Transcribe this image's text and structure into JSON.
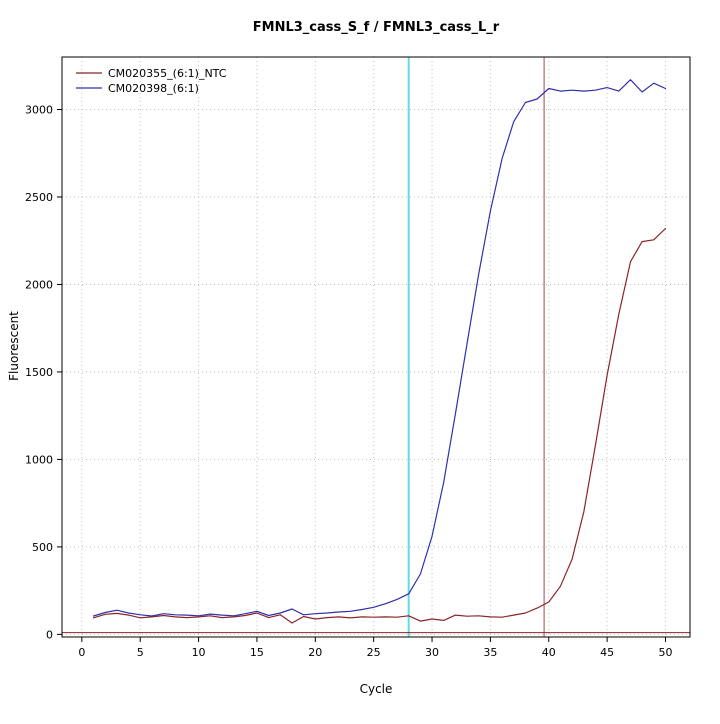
{
  "page": {
    "background": "#ffffff"
  },
  "chart_data": {
    "type": "line",
    "title": "FMNL3_cass_S_f / FMNL3_cass_L_r",
    "xlabel": "Cycle",
    "ylabel": "Fluorescent",
    "xlim": [
      -1.7,
      52.1
    ],
    "ylim": [
      -15,
      3300
    ],
    "x_ticks": [
      0,
      5,
      10,
      15,
      20,
      25,
      30,
      35,
      40,
      45,
      50
    ],
    "y_ticks": [
      0,
      500,
      1000,
      1500,
      2000,
      2500,
      3000
    ],
    "grid": "dotted",
    "grid_color": "#c0c0c0",
    "legend_position": "top-left",
    "x": [
      1,
      2,
      3,
      4,
      5,
      6,
      7,
      8,
      9,
      10,
      11,
      12,
      13,
      14,
      15,
      16,
      17,
      18,
      19,
      20,
      21,
      22,
      23,
      24,
      25,
      26,
      27,
      28,
      29,
      30,
      31,
      32,
      33,
      34,
      35,
      36,
      37,
      38,
      39,
      40,
      41,
      42,
      43,
      44,
      45,
      46,
      47,
      48,
      49,
      50
    ],
    "series": [
      {
        "name": "CM020355_(6:1)_NTC",
        "color": "#8b2525",
        "values": [
          95,
          115,
          120,
          110,
          95,
          100,
          108,
          100,
          96,
          100,
          106,
          96,
          100,
          108,
          122,
          96,
          112,
          65,
          102,
          88,
          96,
          100,
          94,
          100,
          98,
          100,
          98,
          106,
          76,
          88,
          80,
          110,
          104,
          106,
          100,
          98,
          110,
          122,
          150,
          185,
          275,
          430,
          700,
          1080,
          1480,
          1830,
          2130,
          2245,
          2255,
          2320
        ]
      },
      {
        "name": "CM020398_(6:1)",
        "color": "#3030a8",
        "values": [
          105,
          125,
          138,
          122,
          112,
          105,
          118,
          112,
          110,
          106,
          116,
          110,
          106,
          118,
          132,
          108,
          122,
          145,
          112,
          118,
          122,
          128,
          132,
          142,
          155,
          175,
          200,
          232,
          345,
          560,
          870,
          1260,
          1660,
          2060,
          2420,
          2720,
          2930,
          3040,
          3060,
          3120,
          3105,
          3110,
          3105,
          3110,
          3125,
          3105,
          3170,
          3100,
          3150,
          3120
        ]
      }
    ],
    "vlines": [
      {
        "x": 28,
        "color": "#5fdbea",
        "width": 2
      },
      {
        "x": 39.6,
        "color": "#a04848",
        "width": 1
      }
    ],
    "hlines": [
      {
        "y": 10,
        "color": "#8b2525",
        "width": 1
      }
    ]
  }
}
